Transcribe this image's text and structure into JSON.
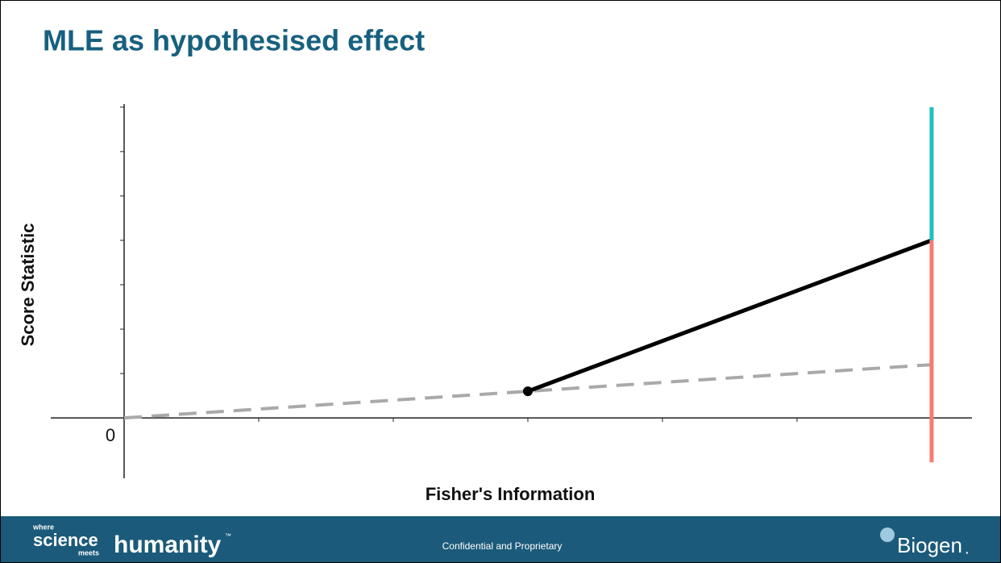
{
  "title": "MLE as hypothesised effect",
  "footer": {
    "logo_small_top": "where",
    "logo_science": "science",
    "logo_small_bottom": "meets",
    "logo_humanity": "humanity",
    "logo_tm": "™",
    "center": "Confidential and Proprietary",
    "brand": "Biogen",
    "brand_dot": "."
  },
  "chart_data": {
    "type": "line",
    "x_label": "Fisher's Information",
    "y_label": "Score Statistic",
    "origin_label": "0",
    "xlim": [
      -0.545,
      6.3
    ],
    "ylim": [
      -1.36,
      7.07
    ],
    "xticks": [
      0,
      1,
      2,
      3,
      4,
      5,
      6
    ],
    "yticks": [
      0,
      1,
      2,
      3,
      4,
      5,
      6,
      7
    ],
    "series": [
      {
        "color": "#a9a9a9",
        "style": "dashed",
        "x": [
          0,
          6
        ],
        "values": [
          0,
          1.2
        ]
      },
      {
        "color": "#000000",
        "style": "solid",
        "marker": "start",
        "x": [
          3,
          6
        ],
        "values": [
          0.6,
          4
        ]
      },
      {
        "color": "#1fbfbf",
        "style": "solid",
        "x": [
          6,
          6
        ],
        "values": [
          4,
          7
        ]
      },
      {
        "color": "#f47c72",
        "style": "solid",
        "x": [
          6,
          6
        ],
        "values": [
          -1,
          4
        ]
      }
    ]
  }
}
